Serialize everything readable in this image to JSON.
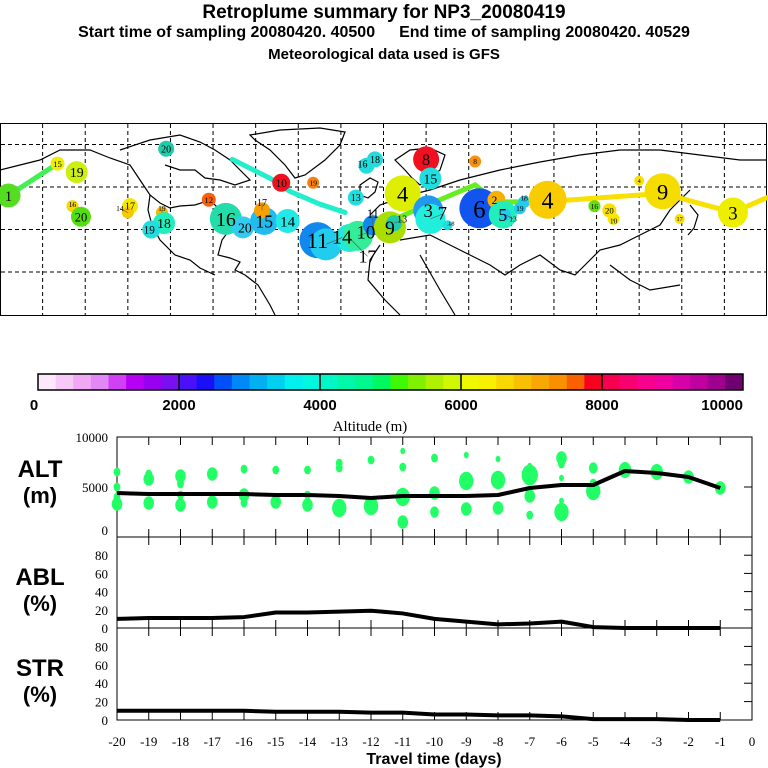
{
  "header": {
    "title": "Retroplume summary for NP3_20080419",
    "start": "Start time of sampling 20080420. 40500",
    "end": "End time of sampling 20080420. 40529",
    "met": "Meteorological data used is GFS"
  },
  "map": {
    "lon_range": [
      -180,
      180
    ],
    "markers": [
      {
        "label": "1",
        "lon": -176,
        "lat": 36,
        "w": 10,
        "color": "#55dd22"
      },
      {
        "label": "15",
        "lon": -153,
        "lat": 51,
        "w": 5,
        "color": "#eeee00"
      },
      {
        "label": "19",
        "lon": -144,
        "lat": 47,
        "w": 9,
        "color": "#ccee11"
      },
      {
        "label": "16",
        "lon": -146,
        "lat": 31,
        "w": 4,
        "color": "#f8d800"
      },
      {
        "label": "20",
        "lon": -142,
        "lat": 26,
        "w": 8,
        "color": "#55dd11"
      },
      {
        "label": "17",
        "lon": -119,
        "lat": 31,
        "w": 6,
        "color": "#f8e800"
      },
      {
        "label": "14",
        "lon": -120,
        "lat": 28,
        "w": 4,
        "color": "#f8c800"
      },
      {
        "label": "19",
        "lon": -104,
        "lat": 28,
        "w": 4,
        "color": "#f8b800"
      },
      {
        "label": "18",
        "lon": -103,
        "lat": 23,
        "w": 9,
        "color": "#22eebb"
      },
      {
        "label": "19",
        "lon": -109,
        "lat": 20,
        "w": 7,
        "color": "#22dddd"
      },
      {
        "label": "20",
        "lon": -102,
        "lat": 58,
        "w": 6,
        "color": "#22ccaa"
      },
      {
        "label": "12",
        "lon": -82,
        "lat": 34,
        "w": 5,
        "color": "#f86010"
      },
      {
        "label": "16",
        "lon": -74,
        "lat": 25,
        "w": 14,
        "color": "#22ddaa"
      },
      {
        "label": "20",
        "lon": -66,
        "lat": 21,
        "w": 9,
        "color": "#33ccee"
      },
      {
        "label": "15",
        "lon": -56,
        "lat": 24,
        "w": 12,
        "color": "#22bbee"
      },
      {
        "label": "17",
        "lon": -57,
        "lat": 29,
        "w": 6,
        "color": "#f8a000"
      },
      {
        "label": "14",
        "lon": -45,
        "lat": 24,
        "w": 10,
        "color": "#22e8e8"
      },
      {
        "label": "10",
        "lon": -48,
        "lat": 42,
        "w": 7,
        "color": "#f01020"
      },
      {
        "label": "19",
        "lon": -33,
        "lat": 42,
        "w": 4,
        "color": "#f88010"
      },
      {
        "label": "18",
        "lon": -4,
        "lat": 53,
        "w": 6,
        "color": "#22dddd"
      },
      {
        "label": "16",
        "lon": -8,
        "lat": 50,
        "w": 6,
        "color": "#22dddd"
      },
      {
        "label": "11",
        "lon": -31,
        "lat": 15,
        "w": 16,
        "color": "#1188ee"
      },
      {
        "label": "14",
        "lon": -27,
        "lat": 13,
        "w": 14,
        "color": "#22ccee"
      },
      {
        "label": "17",
        "lon": -16,
        "lat": 16,
        "w": 12,
        "color": "#22e8e0"
      },
      {
        "label": "10",
        "lon": -12,
        "lat": 17,
        "w": 13,
        "color": "#33ee99"
      },
      {
        "label": "8",
        "lon": 20,
        "lat": 53,
        "w": 11,
        "color": "#f01020"
      },
      {
        "label": "8",
        "lon": 43,
        "lat": 52,
        "w": 4,
        "color": "#f89010"
      },
      {
        "label": "4",
        "lon": 9,
        "lat": 37,
        "w": 16,
        "color": "#ddee00"
      },
      {
        "label": "15",
        "lon": 22,
        "lat": 44,
        "w": 9,
        "color": "#22dddd"
      },
      {
        "label": "3",
        "lon": 21,
        "lat": 29,
        "w": 13,
        "color": "#2299ee"
      },
      {
        "label": "7",
        "lon": 22,
        "lat": 25,
        "w": 13,
        "color": "#22eedd"
      },
      {
        "label": "6",
        "lon": 45,
        "lat": 30,
        "w": 18,
        "color": "#1155ee"
      },
      {
        "label": "18",
        "lon": 30,
        "lat": 22,
        "w": 3,
        "color": "#22dddd"
      },
      {
        "label": "2",
        "lon": 53,
        "lat": 34,
        "w": 7,
        "color": "#f8b000"
      },
      {
        "label": "5",
        "lon": 56,
        "lat": 27,
        "w": 12,
        "color": "#22eebb"
      },
      {
        "label": "19",
        "lon": 64,
        "lat": 30,
        "w": 4,
        "color": "#22ccee"
      },
      {
        "label": "13",
        "lon": 57,
        "lat": 27,
        "w": 4,
        "color": "#22ccee"
      },
      {
        "label": "18",
        "lon": 66,
        "lat": 33,
        "w": 4,
        "color": "#22ccee"
      },
      {
        "label": "11",
        "lon": -5,
        "lat": 22,
        "w": 8,
        "color": "#1188ee"
      },
      {
        "label": "9",
        "lon": 3,
        "lat": 21,
        "w": 14,
        "color": "#aadd00"
      },
      {
        "label": "13",
        "lon": 5,
        "lat": 23,
        "w": 6,
        "color": "#22ccaa"
      },
      {
        "label": "13",
        "lon": -13,
        "lat": 35,
        "w": 6,
        "color": "#22dddd"
      },
      {
        "label": "4",
        "lon": 77,
        "lat": 34,
        "w": 17,
        "color": "#f8cc00"
      },
      {
        "label": "16",
        "lon": 99,
        "lat": 31,
        "w": 4,
        "color": "#66dd11"
      },
      {
        "label": "20",
        "lon": 106,
        "lat": 29,
        "w": 5,
        "color": "#f8e000"
      },
      {
        "label": "10",
        "lon": 108,
        "lat": 25,
        "w": 4,
        "color": "#f8e800"
      },
      {
        "label": "4",
        "lon": 120,
        "lat": 43,
        "w": 3,
        "color": "#f8e000"
      },
      {
        "label": "9",
        "lon": 131,
        "lat": 38,
        "w": 16,
        "color": "#f5dd00"
      },
      {
        "label": "17",
        "lon": 139,
        "lat": 25,
        "w": 3,
        "color": "#f8e000"
      },
      {
        "label": "3",
        "lon": 164,
        "lat": 28,
        "w": 13,
        "color": "#eeee00"
      }
    ],
    "tracks": [
      {
        "color": "#44ee55",
        "points": [
          [
            -176,
            36
          ],
          [
            -153,
            51
          ]
        ]
      },
      {
        "color": "#22eecc",
        "points": [
          [
            -71,
            53
          ],
          [
            -63,
            49
          ],
          [
            -53,
            44
          ],
          [
            -44,
            38
          ],
          [
            -30,
            32
          ],
          [
            -18,
            28
          ]
        ]
      },
      {
        "color": "#66ee22",
        "points": [
          [
            3,
            24
          ],
          [
            43,
            41
          ],
          [
            53,
            33
          ],
          [
            75,
            33
          ]
        ]
      },
      {
        "color": "#f8e000",
        "points": [
          [
            75,
            33
          ],
          [
            131,
            37
          ],
          [
            164,
            28
          ],
          [
            180,
            35
          ]
        ]
      }
    ]
  },
  "colorbar": {
    "label": "Altitude (m)",
    "ticks": [
      "0",
      "2000",
      "4000",
      "6000",
      "8000",
      "10000"
    ],
    "colors": [
      "#fde8fb",
      "#f8c8f8",
      "#f0a8f5",
      "#e088f5",
      "#d040f5",
      "#b800f5",
      "#9a00f0",
      "#7a10f0",
      "#4a10f8",
      "#1a10f8",
      "#0050f8",
      "#0088f8",
      "#00b0f0",
      "#00d0f0",
      "#00f0f0",
      "#00f8e0",
      "#00f8c8",
      "#00f8a8",
      "#00f890",
      "#00f860",
      "#40f800",
      "#80f000",
      "#b0f000",
      "#d0f800",
      "#f0f800",
      "#f8f000",
      "#f8d800",
      "#f8c000",
      "#f8a800",
      "#f89000",
      "#f86000",
      "#f80020",
      "#f80050",
      "#f80070",
      "#f80090",
      "#f000a0",
      "#d800a8",
      "#c000a0",
      "#a00090",
      "#700070"
    ]
  },
  "chart_data": [
    {
      "type": "line",
      "panel": "ALT",
      "ylabel": "ALT",
      "yunit": "(m)",
      "ylim": [
        0,
        10000
      ],
      "yticks": [
        "10000",
        "5000",
        "0"
      ],
      "x": [
        -20,
        -19,
        -18,
        -17,
        -16,
        -15,
        -14,
        -13,
        -12,
        -11,
        -10,
        -9,
        -8,
        -7,
        -6,
        -5,
        -4,
        -3,
        -2,
        -1
      ],
      "values": [
        4400,
        4300,
        4300,
        4300,
        4300,
        4200,
        4200,
        4100,
        3900,
        4100,
        4100,
        4100,
        4200,
        4900,
        5200,
        5200,
        6600,
        6400,
        6000,
        4900
      ],
      "scatter_color": "#22ff66",
      "scatter": [
        [
          -20,
          6500,
          1
        ],
        [
          -20,
          5000,
          1
        ],
        [
          -20,
          4000,
          1
        ],
        [
          -20,
          3300,
          2
        ],
        [
          -19,
          5800,
          2
        ],
        [
          -19,
          6300,
          1
        ],
        [
          -19,
          3400,
          2
        ],
        [
          -18,
          6100,
          2
        ],
        [
          -18,
          5300,
          1
        ],
        [
          -18,
          4200,
          1
        ],
        [
          -18,
          3200,
          2
        ],
        [
          -17,
          6300,
          2
        ],
        [
          -17,
          3500,
          2
        ],
        [
          -16,
          6800,
          1
        ],
        [
          -16,
          4200,
          2
        ],
        [
          -16,
          3400,
          1
        ],
        [
          -15,
          6700,
          1
        ],
        [
          -15,
          3500,
          2
        ],
        [
          -14,
          6700,
          1
        ],
        [
          -14,
          4200,
          1
        ],
        [
          -14,
          3200,
          2
        ],
        [
          -13,
          7400,
          1
        ],
        [
          -13,
          6900,
          1
        ],
        [
          -13,
          2900,
          3
        ],
        [
          -12,
          7700,
          1
        ],
        [
          -12,
          3100,
          3
        ],
        [
          -11,
          8600,
          0.5
        ],
        [
          -11,
          7000,
          1
        ],
        [
          -11,
          4000,
          3
        ],
        [
          -11,
          1500,
          2
        ],
        [
          -10,
          7900,
          1
        ],
        [
          -10,
          4400,
          2
        ],
        [
          -10,
          2500,
          1.5
        ],
        [
          -9,
          8200,
          0.5
        ],
        [
          -9,
          5600,
          3
        ],
        [
          -9,
          2800,
          2
        ],
        [
          -8,
          7800,
          0.5
        ],
        [
          -8,
          5700,
          3
        ],
        [
          -8,
          2900,
          2
        ],
        [
          -7,
          7100,
          0.5
        ],
        [
          -7,
          6200,
          3.5
        ],
        [
          -7,
          4100,
          2
        ],
        [
          -7,
          2200,
          1
        ],
        [
          -6,
          7900,
          2
        ],
        [
          -6,
          7300,
          1
        ],
        [
          -6,
          5900,
          0.5
        ],
        [
          -6,
          3600,
          0.5
        ],
        [
          -6,
          2500,
          3
        ],
        [
          -5,
          6900,
          1.5
        ],
        [
          -5,
          5400,
          1
        ],
        [
          -5,
          4600,
          3
        ],
        [
          -4,
          6700,
          2.5
        ],
        [
          -3,
          6500,
          2.5
        ],
        [
          -2,
          6000,
          2
        ],
        [
          -1,
          4900,
          2
        ]
      ]
    },
    {
      "type": "line",
      "panel": "ABL",
      "ylabel": "ABL",
      "yunit": "(%)",
      "ylim": [
        0,
        100
      ],
      "yticks": [
        "80",
        "60",
        "40",
        "20",
        "0"
      ],
      "x": [
        -20,
        -19,
        -18,
        -17,
        -16,
        -15,
        -14,
        -13,
        -12,
        -11,
        -10,
        -9,
        -8,
        -7,
        -6,
        -5,
        -4,
        -3,
        -2,
        -1
      ],
      "values": [
        10,
        11,
        11,
        11,
        12,
        17,
        17,
        18,
        19,
        16,
        10,
        7,
        4,
        5,
        7,
        1,
        0,
        0,
        0,
        0
      ]
    },
    {
      "type": "line",
      "panel": "STR",
      "ylabel": "STR",
      "yunit": "(%)",
      "ylim": [
        0,
        100
      ],
      "yticks": [
        "80",
        "60",
        "40",
        "20",
        "0"
      ],
      "x": [
        -20,
        -19,
        -18,
        -17,
        -16,
        -15,
        -14,
        -13,
        -12,
        -11,
        -10,
        -9,
        -8,
        -7,
        -6,
        -5,
        -4,
        -3,
        -2,
        -1
      ],
      "values": [
        10,
        10,
        10,
        10,
        10,
        9,
        9,
        9,
        8,
        8,
        6,
        6,
        5,
        5,
        4,
        1,
        1,
        1,
        0,
        0
      ],
      "xlabel": "Travel time (days)",
      "xticks": [
        "-20",
        "-19",
        "-18",
        "-17",
        "-16",
        "-15",
        "-14",
        "-13",
        "-12",
        "-11",
        "-10",
        "-9",
        "-8",
        "-7",
        "-6",
        "-5",
        "-4",
        "-3",
        "-2",
        "-1",
        "0"
      ],
      "xlim": [
        -20,
        0
      ]
    }
  ]
}
